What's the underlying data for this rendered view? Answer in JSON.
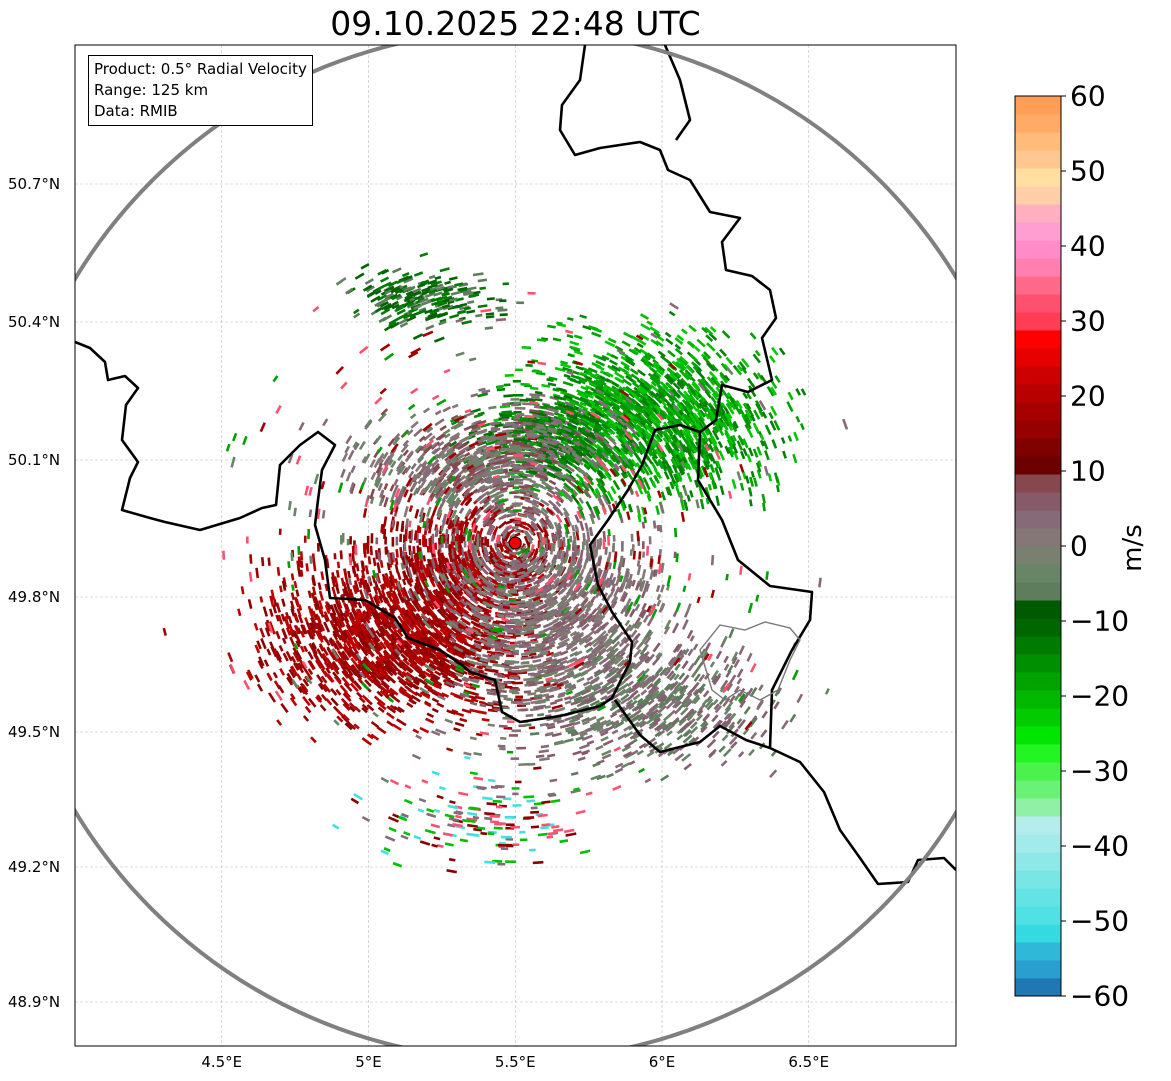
{
  "title": "09.10.2025 22:48 UTC",
  "info": {
    "product": "Product: 0.5° Radial Velocity",
    "range": "Range: 125 km",
    "data": "Data: RMIB"
  },
  "x_ticks": [
    {
      "label": "4.5°E",
      "lon": 4.5
    },
    {
      "label": "5°E",
      "lon": 5.0
    },
    {
      "label": "5.5°E",
      "lon": 5.5
    },
    {
      "label": "6°E",
      "lon": 6.0
    },
    {
      "label": "6.5°E",
      "lon": 6.5
    }
  ],
  "y_ticks": [
    {
      "label": "50.7°N",
      "lat": 50.7
    },
    {
      "label": "50.4°N",
      "lat": 50.4
    },
    {
      "label": "50.1°N",
      "lat": 50.1
    },
    {
      "label": "49.8°N",
      "lat": 49.8
    },
    {
      "label": "49.5°N",
      "lat": 49.5
    },
    {
      "label": "49.2°N",
      "lat": 49.2
    },
    {
      "label": "48.9°N",
      "lat": 48.9
    }
  ],
  "radar_site": {
    "lon": 5.5,
    "lat": 49.91
  },
  "colorbar": {
    "label": "m/s",
    "min": -60,
    "max": 60,
    "ticks": [
      "60",
      "50",
      "40",
      "30",
      "20",
      "10",
      "0",
      "−10",
      "−20",
      "−30",
      "−40",
      "−50",
      "−60"
    ],
    "colors": [
      "#1f77b4",
      "#2a9fcf",
      "#30b8d8",
      "#33dbe0",
      "#4fe1e3",
      "#63e3e3",
      "#79e6e6",
      "#8ee8e8",
      "#a3ebeb",
      "#b5eded",
      "#8ff0a6",
      "#6af277",
      "#4cf24c",
      "#22f522",
      "#00e600",
      "#00cc00",
      "#00b800",
      "#00a300",
      "#008f00",
      "#007a00",
      "#006600",
      "#005a00",
      "#5d7d5d",
      "#688566",
      "#7a8070",
      "#857777",
      "#876a78",
      "#865a68",
      "#86484f",
      "#6b0000",
      "#800000",
      "#960000",
      "#a60000",
      "#b80000",
      "#cc0000",
      "#e60000",
      "#ff0000",
      "#ff3d55",
      "#ff5070",
      "#ff6a8a",
      "#ff80b0",
      "#ff8cc8",
      "#ff9ed0",
      "#ffb0c0",
      "#ffd0a8",
      "#ffe0a0",
      "#ffc890",
      "#ffbb7a",
      "#ffaa66",
      "#ff9e57"
    ]
  }
}
